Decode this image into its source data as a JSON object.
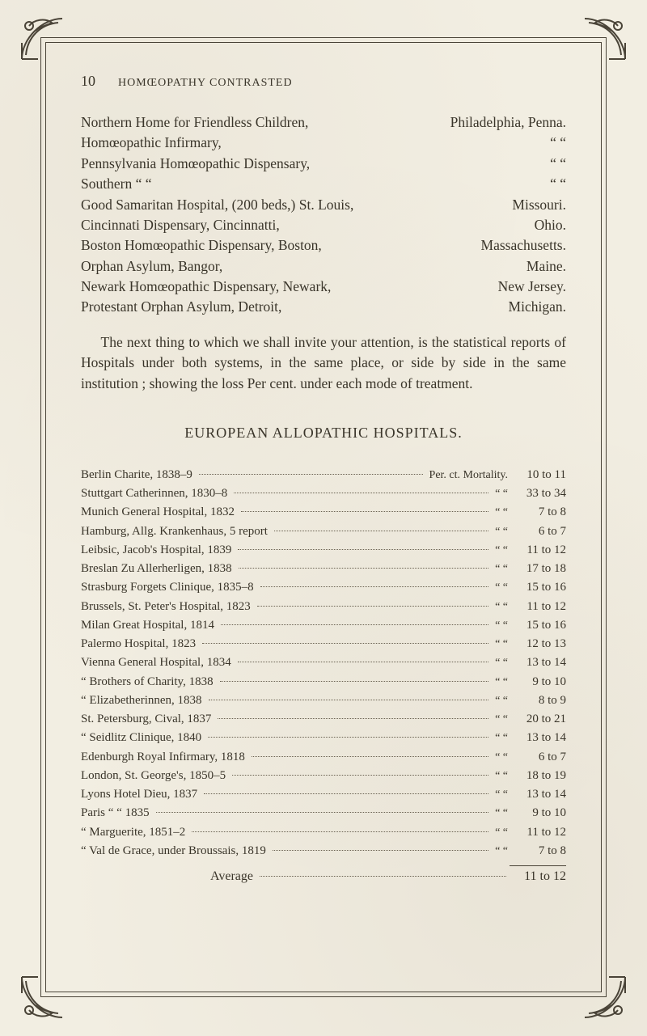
{
  "page": {
    "number": "10",
    "running_title": "HOMŒOPATHY CONTRASTED"
  },
  "colors": {
    "paper": "#f2eee2",
    "ink": "#3a352a",
    "rule": "#4a4438"
  },
  "typography": {
    "body_family": "Times New Roman",
    "body_size_pt": 13,
    "title_size_pt": 14,
    "line_height": 1.45
  },
  "institutions": [
    {
      "name": "Northern Home for Friendless Children,",
      "city": "Philadelphia,",
      "state": "Penna."
    },
    {
      "name": "Homœopathic Infirmary,",
      "city": "“",
      "state": "“"
    },
    {
      "name": "Pennsylvania Homœopathic Dispensary,",
      "city": "“",
      "state": "“"
    },
    {
      "name": "Southern            “                 “",
      "city": "“",
      "state": "“"
    },
    {
      "name": "Good Samaritan Hospital, (200 beds,) St. Louis,",
      "city": "",
      "state": "Missouri."
    },
    {
      "name": "Cincinnati Dispensary, Cincinnatti,",
      "city": "",
      "state": "Ohio."
    },
    {
      "name": "Boston Homœopathic Dispensary, Boston,",
      "city": "",
      "state": "Massachusetts."
    },
    {
      "name": "Orphan Asylum, Bangor,",
      "city": "",
      "state": "Maine."
    },
    {
      "name": "Newark Homœopathic Dispensary, Newark,",
      "city": "",
      "state": "New Jersey."
    },
    {
      "name": "Protestant Orphan Asylum, Detroit,",
      "city": "",
      "state": "Michigan."
    }
  ],
  "paragraph": "The next thing to which we shall invite your attention, is the statistical reports of Hospitals under both systems, in the same place, or side by side in the same institution ; showing the loss Per cent. under each mode of treatment.",
  "section_title": "EUROPEAN ALLOPATHIC HOSPITALS.",
  "table": {
    "header_mid_first": "Per. ct. Mortality.",
    "header_mid_rest": "“      “",
    "rows": [
      {
        "name": "Berlin Charite, 1838–9",
        "value": "10 to 11"
      },
      {
        "name": "Stuttgart Catherinnen, 1830–8",
        "value": "33 to 34"
      },
      {
        "name": "Munich General Hospital, 1832",
        "value": "7 to  8"
      },
      {
        "name": "Hamburg, Allg. Krankenhaus, 5 report",
        "value": "6 to  7"
      },
      {
        "name": "Leibsic, Jacob's Hospital, 1839",
        "value": "11 to 12"
      },
      {
        "name": "Breslan Zu Allerherligen, 1838",
        "value": "17 to 18"
      },
      {
        "name": "Strasburg Forgets Clinique, 1835–8",
        "value": "15 to 16"
      },
      {
        "name": "Brussels, St. Peter's Hospital, 1823",
        "value": "11 to 12"
      },
      {
        "name": "Milan Great Hospital, 1814",
        "value": "15 to 16"
      },
      {
        "name": "Palermo Hospital, 1823",
        "value": "12 to 13"
      },
      {
        "name": "Vienna General Hospital, 1834",
        "value": "13 to 14"
      },
      {
        "name": "   “     Brothers of Charity, 1838",
        "value": "9 to 10"
      },
      {
        "name": "   “     Elizabetherinnen, 1838",
        "value": "8 to  9"
      },
      {
        "name": "St. Petersburg, Cival, 1837",
        "value": "20 to 21"
      },
      {
        "name": "   “            Seidlitz Clinique, 1840",
        "value": "13 to 14"
      },
      {
        "name": "Edenburgh Royal Infirmary, 1818",
        "value": "6 to  7"
      },
      {
        "name": "London, St. George's, 1850–5",
        "value": "18 to 19"
      },
      {
        "name": "Lyons Hotel Dieu, 1837",
        "value": "13 to 14"
      },
      {
        "name": "Paris    “      “    1835",
        "value": "9 to 10"
      },
      {
        "name": "   “   Marguerite, 1851–2",
        "value": "11 to 12"
      },
      {
        "name": "   “   Val de Grace, under Broussais, 1819",
        "value": "7 to  8"
      }
    ],
    "average_label": "Average",
    "average_value": "11 to 12"
  }
}
